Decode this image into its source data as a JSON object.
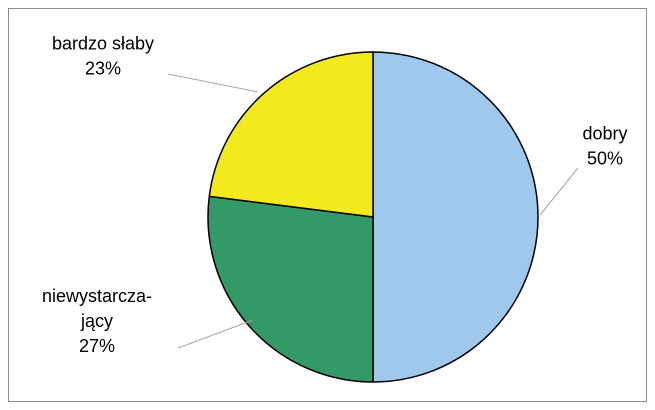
{
  "chart_data": {
    "type": "pie",
    "title": "",
    "slices": [
      {
        "label": "dobry",
        "value": 50,
        "percent_label": "50%",
        "color": "#a0c8ec"
      },
      {
        "label": "niewystarcza-\njący",
        "value": 27,
        "percent_label": "27%",
        "color": "#339966"
      },
      {
        "label": "bardzo słaby",
        "value": 23,
        "percent_label": "23%",
        "color": "#f2ea1c"
      }
    ],
    "start_angle_deg": 0,
    "direction": "clockwise",
    "legend": "none"
  }
}
